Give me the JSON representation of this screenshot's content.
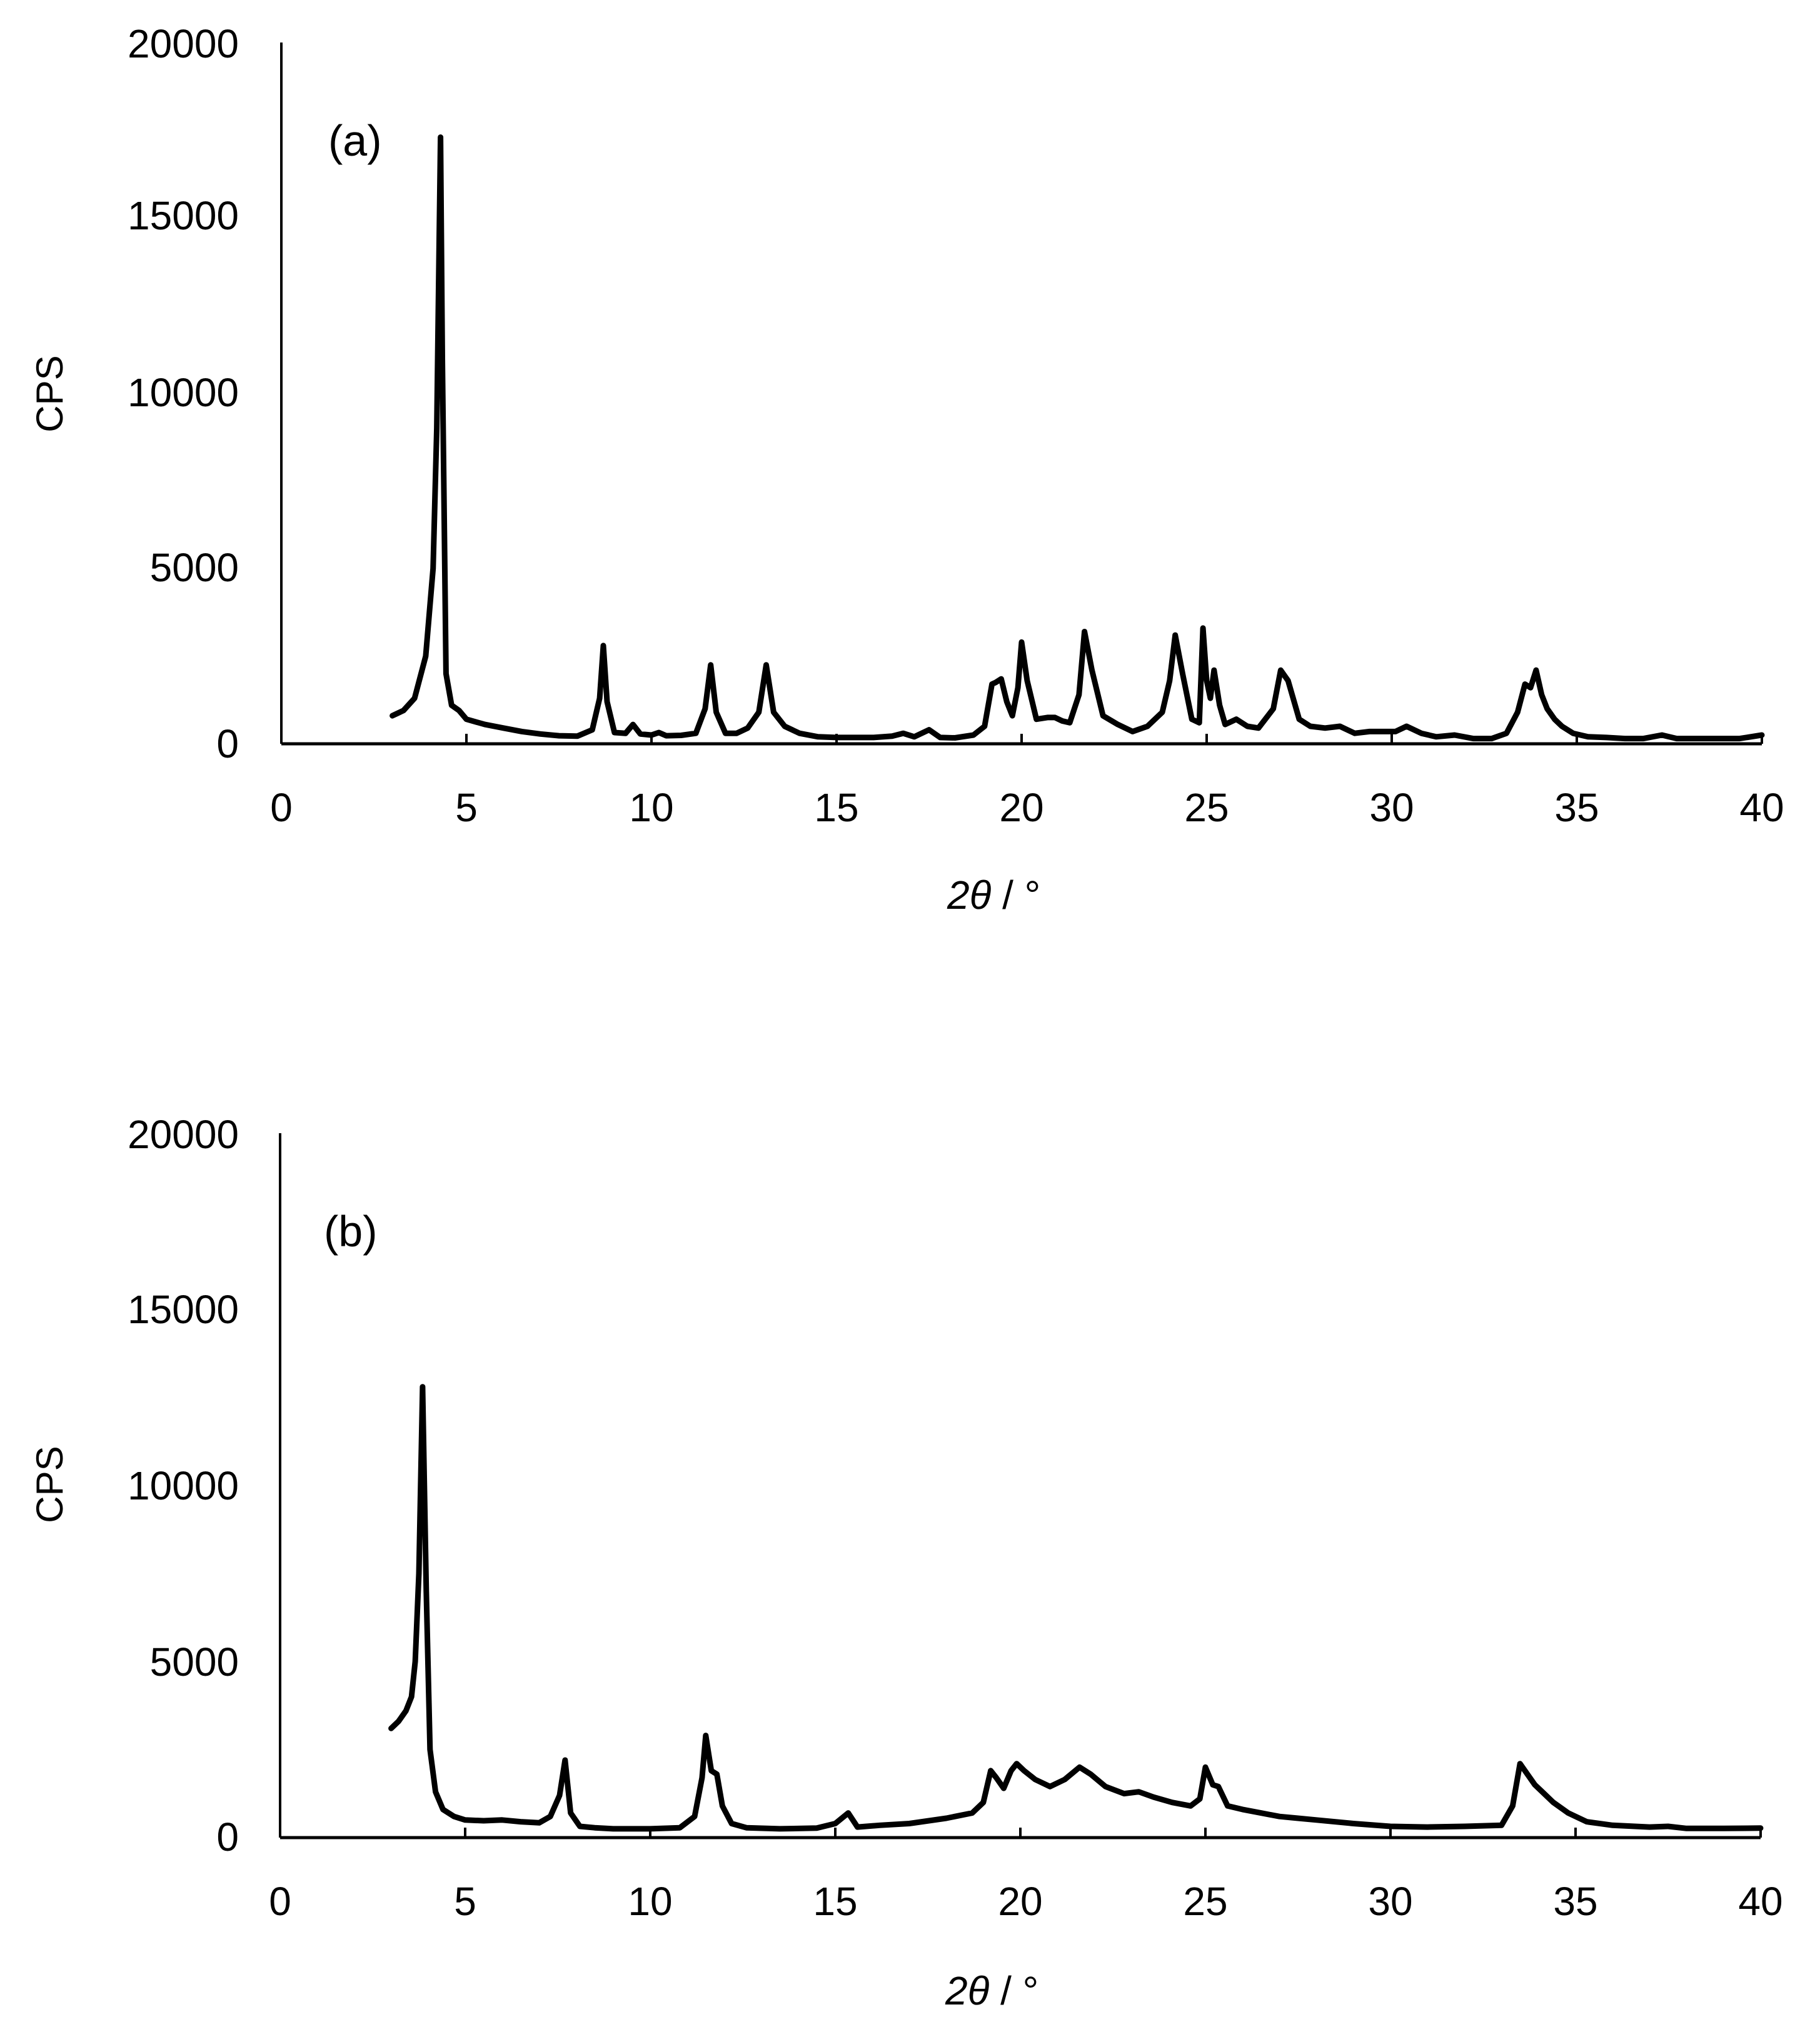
{
  "chart_data": [
    {
      "type": "line",
      "panel_label": "(a)",
      "title": "",
      "xlabel": "2θ / °",
      "xlabel_parts": {
        "two": "2",
        "theta": "θ",
        "unit": " / °"
      },
      "ylabel": "CPS",
      "xlim": [
        0,
        40
      ],
      "ylim": [
        0,
        20000
      ],
      "xticks": [
        "0",
        "5",
        "10",
        "15",
        "20",
        "25",
        "30",
        "35",
        "40"
      ],
      "yticks": [
        "0",
        "5000",
        "10000",
        "15000",
        "20000"
      ],
      "grid": false,
      "legend": null,
      "series": [
        {
          "name": "(a)",
          "color": "#000000",
          "x": [
            3.0,
            3.3,
            3.6,
            3.9,
            4.1,
            4.2,
            4.3,
            4.35,
            4.45,
            4.6,
            4.8,
            5.0,
            5.5,
            6.0,
            6.5,
            7.0,
            7.5,
            8.0,
            8.4,
            8.6,
            8.7,
            8.8,
            9.0,
            9.3,
            9.5,
            9.7,
            10.0,
            10.2,
            10.4,
            10.8,
            11.2,
            11.45,
            11.6,
            11.75,
            12.0,
            12.3,
            12.6,
            12.9,
            13.1,
            13.3,
            13.6,
            14.0,
            14.5,
            15.0,
            15.5,
            16.0,
            16.5,
            16.8,
            17.1,
            17.5,
            17.8,
            18.2,
            18.7,
            19.0,
            19.2,
            19.3,
            19.45,
            19.6,
            19.75,
            19.9,
            20.0,
            20.15,
            20.4,
            20.7,
            20.9,
            21.1,
            21.3,
            21.55,
            21.7,
            21.9,
            22.2,
            22.6,
            23.0,
            23.4,
            23.8,
            24.0,
            24.15,
            24.35,
            24.6,
            24.8,
            24.9,
            25.0,
            25.1,
            25.2,
            25.35,
            25.5,
            25.8,
            26.1,
            26.4,
            26.8,
            27.0,
            27.2,
            27.5,
            27.8,
            28.2,
            28.6,
            29.0,
            29.4,
            29.8,
            30.1,
            30.4,
            30.8,
            31.2,
            31.7,
            32.2,
            32.7,
            33.1,
            33.4,
            33.6,
            33.75,
            33.9,
            34.05,
            34.2,
            34.4,
            34.6,
            34.9,
            35.3,
            35.8,
            36.3,
            36.8,
            37.3,
            37.7,
            38.2,
            38.8,
            39.4,
            40.0
          ],
          "values": [
            800,
            950,
            1300,
            2500,
            5000,
            9000,
            17300,
            11000,
            2000,
            1100,
            950,
            700,
            550,
            450,
            350,
            280,
            230,
            220,
            400,
            1300,
            2800,
            1200,
            320,
            300,
            550,
            280,
            250,
            320,
            230,
            240,
            300,
            1000,
            2250,
            900,
            300,
            300,
            450,
            900,
            2250,
            900,
            500,
            300,
            200,
            180,
            180,
            180,
            220,
            300,
            200,
            400,
            180,
            170,
            250,
            500,
            1700,
            1750,
            1850,
            1200,
            800,
            1600,
            2900,
            1800,
            700,
            750,
            750,
            650,
            600,
            1400,
            3200,
            2100,
            800,
            550,
            350,
            500,
            900,
            1800,
            3100,
            2000,
            700,
            600,
            3300,
            1800,
            1300,
            2100,
            1100,
            550,
            700,
            500,
            450,
            1000,
            2100,
            1800,
            700,
            500,
            450,
            500,
            300,
            350,
            350,
            350,
            500,
            300,
            200,
            250,
            150,
            150,
            300,
            900,
            1700,
            1600,
            2100,
            1400,
            1000,
            700,
            500,
            300,
            200,
            180,
            150,
            150,
            250,
            150,
            150,
            150,
            150,
            250
          ]
        }
      ]
    },
    {
      "type": "line",
      "panel_label": "(b)",
      "title": "",
      "xlabel": "2θ / °",
      "xlabel_parts": {
        "two": "2",
        "theta": "θ",
        "unit": " / °"
      },
      "ylabel": "CPS",
      "xlim": [
        0,
        40
      ],
      "ylim": [
        0,
        20000
      ],
      "xticks": [
        "0",
        "5",
        "10",
        "15",
        "20",
        "25",
        "30",
        "35",
        "40"
      ],
      "yticks": [
        "0",
        "5000",
        "10000",
        "15000",
        "20000"
      ],
      "grid": false,
      "legend": null,
      "series": [
        {
          "name": "(b)",
          "color": "#000000",
          "x": [
            3.0,
            3.2,
            3.4,
            3.55,
            3.65,
            3.75,
            3.85,
            3.95,
            4.05,
            4.2,
            4.4,
            4.7,
            5.0,
            5.5,
            6.0,
            6.5,
            7.0,
            7.3,
            7.55,
            7.7,
            7.85,
            8.1,
            8.5,
            9.0,
            10.0,
            10.8,
            11.2,
            11.4,
            11.5,
            11.65,
            11.8,
            11.95,
            12.2,
            12.6,
            13.5,
            14.5,
            15.0,
            15.35,
            15.6,
            16.2,
            17.0,
            18.0,
            18.7,
            19.0,
            19.2,
            19.35,
            19.55,
            19.75,
            19.9,
            20.1,
            20.4,
            20.8,
            21.2,
            21.6,
            21.9,
            22.3,
            22.8,
            23.2,
            23.6,
            24.1,
            24.6,
            24.85,
            25.0,
            25.2,
            25.35,
            25.6,
            26.0,
            26.5,
            27.0,
            27.5,
            28.0,
            29.0,
            30.0,
            31.0,
            32.0,
            33.0,
            33.3,
            33.5,
            33.7,
            33.9,
            34.1,
            34.4,
            34.8,
            35.3,
            36.0,
            37.0,
            37.5,
            38.0,
            39.0,
            40.0
          ],
          "values": [
            3100,
            3300,
            3600,
            4000,
            5000,
            7500,
            12800,
            7000,
            2500,
            1300,
            800,
            600,
            500,
            480,
            500,
            450,
            420,
            600,
            1200,
            2200,
            700,
            320,
            280,
            250,
            250,
            280,
            600,
            1700,
            2900,
            1900,
            1800,
            900,
            400,
            280,
            250,
            270,
            400,
            700,
            300,
            350,
            400,
            550,
            700,
            1000,
            1900,
            1700,
            1400,
            1900,
            2100,
            1900,
            1650,
            1450,
            1650,
            2000,
            1800,
            1450,
            1250,
            1300,
            1150,
            1000,
            900,
            1100,
            2000,
            1500,
            1450,
            900,
            800,
            700,
            600,
            550,
            500,
            400,
            320,
            300,
            320,
            350,
            900,
            2100,
            1800,
            1500,
            1300,
            1000,
            700,
            450,
            350,
            300,
            320,
            260,
            260,
            270
          ]
        }
      ]
    }
  ]
}
